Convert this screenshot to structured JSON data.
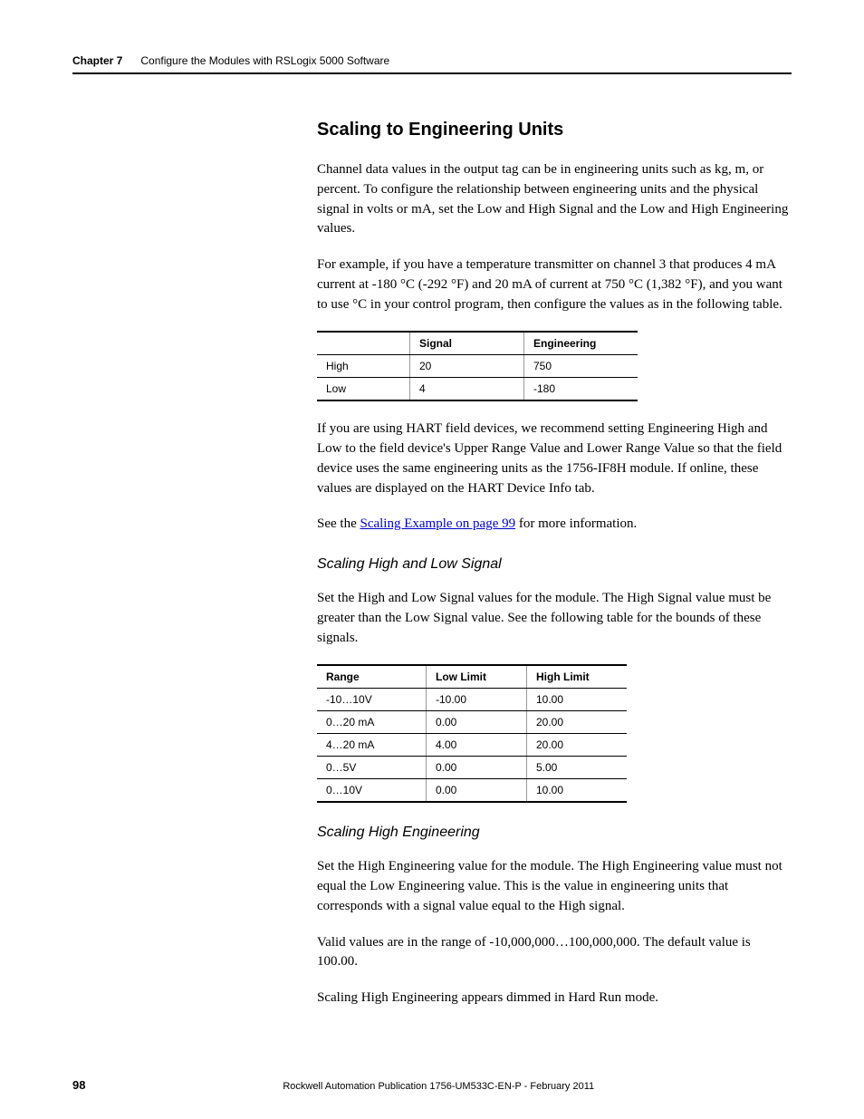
{
  "header": {
    "chapter_label": "Chapter 7",
    "chapter_title": "Configure the Modules with RSLogix 5000 Software"
  },
  "section": {
    "title": "Scaling to Engineering Units",
    "para1": "Channel data values in the output tag can be in engineering units such as kg, m, or percent. To configure the relationship between engineering units and the physical signal in volts or mA, set the Low and High Signal and the Low and High Engineering values.",
    "para2": "For example, if you have a temperature transmitter on channel 3 that produces 4 mA current at -180 °C (-292 °F) and 20 mA of current at 750 °C (1,382 °F), and you want to use °C in your control program, then configure the values as in the following table.",
    "table1": {
      "headers": [
        "",
        "Signal",
        "Engineering"
      ],
      "rows": [
        [
          "High",
          "20",
          "750"
        ],
        [
          "Low",
          "4",
          "-180"
        ]
      ]
    },
    "para3": "If you are using HART field devices, we recommend setting Engineering High and Low to the field device's Upper Range Value and Lower Range Value so that the field device uses the same engineering units as the 1756-IF8H module. If online, these values are displayed on the HART Device Info tab.",
    "see_prefix": "See the ",
    "see_link": "Scaling Example on page 99",
    "see_suffix": " for more information.",
    "sub1": {
      "title": "Scaling High and Low Signal",
      "para": "Set the High and Low Signal values for the module. The High Signal value must be greater than the Low Signal value. See the following table for the bounds of these signals."
    },
    "table2": {
      "headers": [
        "Range",
        "Low Limit",
        "High Limit"
      ],
      "rows": [
        [
          "-10…10V",
          "-10.00",
          "10.00"
        ],
        [
          "0…20 mA",
          "0.00",
          "20.00"
        ],
        [
          "4…20 mA",
          "4.00",
          "20.00"
        ],
        [
          "0…5V",
          "0.00",
          "5.00"
        ],
        [
          "0…10V",
          "0.00",
          "10.00"
        ]
      ]
    },
    "sub2": {
      "title": "Scaling High Engineering",
      "para1": "Set the High Engineering value for the module. The High Engineering value must not equal the Low Engineering value. This is the value in engineering units that corresponds with a signal value equal to the High signal.",
      "para2": "Valid values are in the range of -10,000,000…100,000,000. The default value is 100.00.",
      "para3": "Scaling High Engineering appears dimmed in Hard Run mode."
    }
  },
  "footer": {
    "page": "98",
    "text": "Rockwell Automation Publication 1756-UM533C-EN-P - February 2011"
  }
}
